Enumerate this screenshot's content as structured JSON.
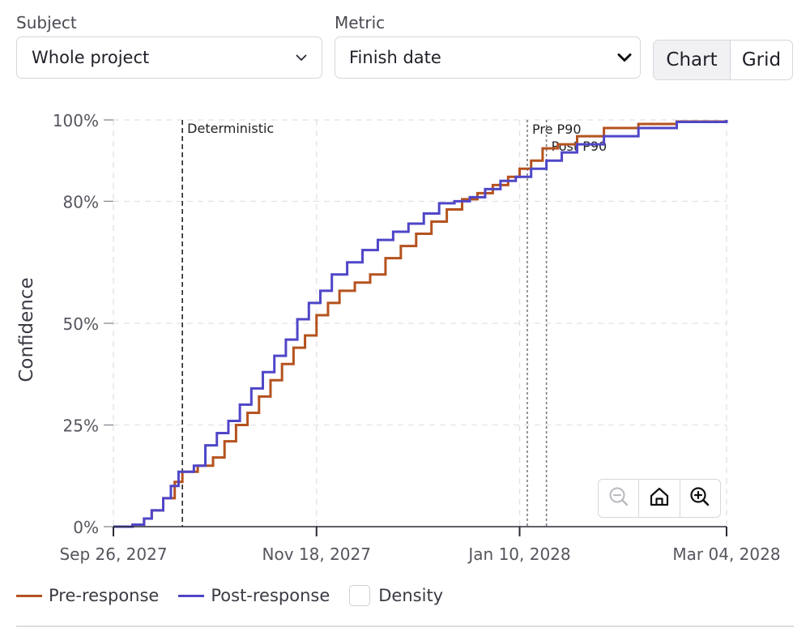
{
  "controls": {
    "subject": {
      "label": "Subject",
      "value": "Whole project"
    },
    "metric": {
      "label": "Metric",
      "value": "Finish date"
    },
    "view_toggle": {
      "options": [
        "Chart",
        "Grid"
      ],
      "active": "Chart"
    }
  },
  "zoom_controls": {
    "zoom_out_icon": "zoom-out-icon",
    "home_icon": "home-icon",
    "zoom_in_icon": "zoom-in-icon"
  },
  "legend": {
    "pre_label": "Pre-response",
    "post_label": "Post-response",
    "density_label": "Density",
    "density_checked": false
  },
  "colors": {
    "pre": "#b5521f",
    "post": "#4f46c8"
  },
  "chart_data": {
    "type": "line",
    "step": true,
    "ylabel": "Confidence",
    "xlabel": "",
    "xlim": [
      "2027-09-26",
      "2028-03-04"
    ],
    "ylim": [
      0,
      100
    ],
    "y_ticks": [
      0,
      25,
      50,
      80,
      100
    ],
    "y_tick_labels": [
      "0%",
      "25%",
      "50%",
      "80%",
      "100%"
    ],
    "x_ticks": [
      "2027-09-26",
      "2027-11-18",
      "2028-01-10",
      "2028-03-04"
    ],
    "x_tick_labels": [
      "Sep 26, 2027",
      "Nov 18, 2027",
      "Jan 10, 2028",
      "Mar 04, 2028"
    ],
    "grid": true,
    "legend_position": "bottom-left",
    "markers": [
      {
        "label": "Deterministic",
        "date": "2027-10-14",
        "style": "dashed"
      },
      {
        "label": "Pre P90",
        "date": "2028-01-12",
        "style": "dotted"
      },
      {
        "label": "Post P90",
        "date": "2028-01-17",
        "style": "dotted"
      }
    ],
    "series": [
      {
        "name": "Pre-response",
        "points": [
          [
            "2027-09-26",
            0
          ],
          [
            "2027-10-01",
            0.5
          ],
          [
            "2027-10-04",
            2
          ],
          [
            "2027-10-06",
            4
          ],
          [
            "2027-10-09",
            7
          ],
          [
            "2027-10-12",
            11
          ],
          [
            "2027-10-14",
            13.5
          ],
          [
            "2027-10-18",
            15
          ],
          [
            "2027-10-22",
            17
          ],
          [
            "2027-10-25",
            21
          ],
          [
            "2027-10-28",
            25
          ],
          [
            "2027-10-31",
            28
          ],
          [
            "2027-11-03",
            32
          ],
          [
            "2027-11-06",
            36
          ],
          [
            "2027-11-09",
            40
          ],
          [
            "2027-11-12",
            44
          ],
          [
            "2027-11-15",
            47
          ],
          [
            "2027-11-18",
            52
          ],
          [
            "2027-11-21",
            55
          ],
          [
            "2027-11-24",
            58
          ],
          [
            "2027-11-28",
            60
          ],
          [
            "2027-12-02",
            62
          ],
          [
            "2027-12-06",
            66
          ],
          [
            "2027-12-10",
            69
          ],
          [
            "2027-12-14",
            72
          ],
          [
            "2027-12-18",
            75
          ],
          [
            "2027-12-22",
            78
          ],
          [
            "2027-12-26",
            80.5
          ],
          [
            "2027-12-30",
            82
          ],
          [
            "2028-01-03",
            84
          ],
          [
            "2028-01-07",
            86
          ],
          [
            "2028-01-10",
            88
          ],
          [
            "2028-01-13",
            90
          ],
          [
            "2028-01-16",
            93
          ],
          [
            "2028-01-20",
            94
          ],
          [
            "2028-01-25",
            96
          ],
          [
            "2028-02-01",
            98
          ],
          [
            "2028-02-10",
            99
          ],
          [
            "2028-02-20",
            99.6
          ],
          [
            "2028-03-04",
            100
          ]
        ]
      },
      {
        "name": "Post-response",
        "points": [
          [
            "2027-09-26",
            0
          ],
          [
            "2027-10-01",
            0.5
          ],
          [
            "2027-10-04",
            2
          ],
          [
            "2027-10-06",
            4
          ],
          [
            "2027-10-09",
            7
          ],
          [
            "2027-10-11",
            10
          ],
          [
            "2027-10-13",
            13.5
          ],
          [
            "2027-10-17",
            15
          ],
          [
            "2027-10-20",
            20
          ],
          [
            "2027-10-23",
            23
          ],
          [
            "2027-10-26",
            26
          ],
          [
            "2027-10-29",
            30
          ],
          [
            "2027-11-01",
            34
          ],
          [
            "2027-11-04",
            38
          ],
          [
            "2027-11-07",
            42
          ],
          [
            "2027-11-10",
            46
          ],
          [
            "2027-11-13",
            51
          ],
          [
            "2027-11-16",
            55
          ],
          [
            "2027-11-19",
            58
          ],
          [
            "2027-11-22",
            62
          ],
          [
            "2027-11-26",
            65
          ],
          [
            "2027-11-30",
            68
          ],
          [
            "2027-12-04",
            70.5
          ],
          [
            "2027-12-08",
            72.5
          ],
          [
            "2027-12-12",
            74.5
          ],
          [
            "2027-12-16",
            77
          ],
          [
            "2027-12-20",
            79.5
          ],
          [
            "2027-12-24",
            80
          ],
          [
            "2027-12-28",
            81
          ],
          [
            "2028-01-01",
            83
          ],
          [
            "2028-01-05",
            85
          ],
          [
            "2028-01-09",
            86
          ],
          [
            "2028-01-13",
            88
          ],
          [
            "2028-01-17",
            90
          ],
          [
            "2028-01-21",
            92
          ],
          [
            "2028-01-25",
            94
          ],
          [
            "2028-02-01",
            96
          ],
          [
            "2028-02-10",
            98
          ],
          [
            "2028-02-20",
            99.5
          ],
          [
            "2028-03-04",
            100
          ]
        ]
      }
    ]
  }
}
